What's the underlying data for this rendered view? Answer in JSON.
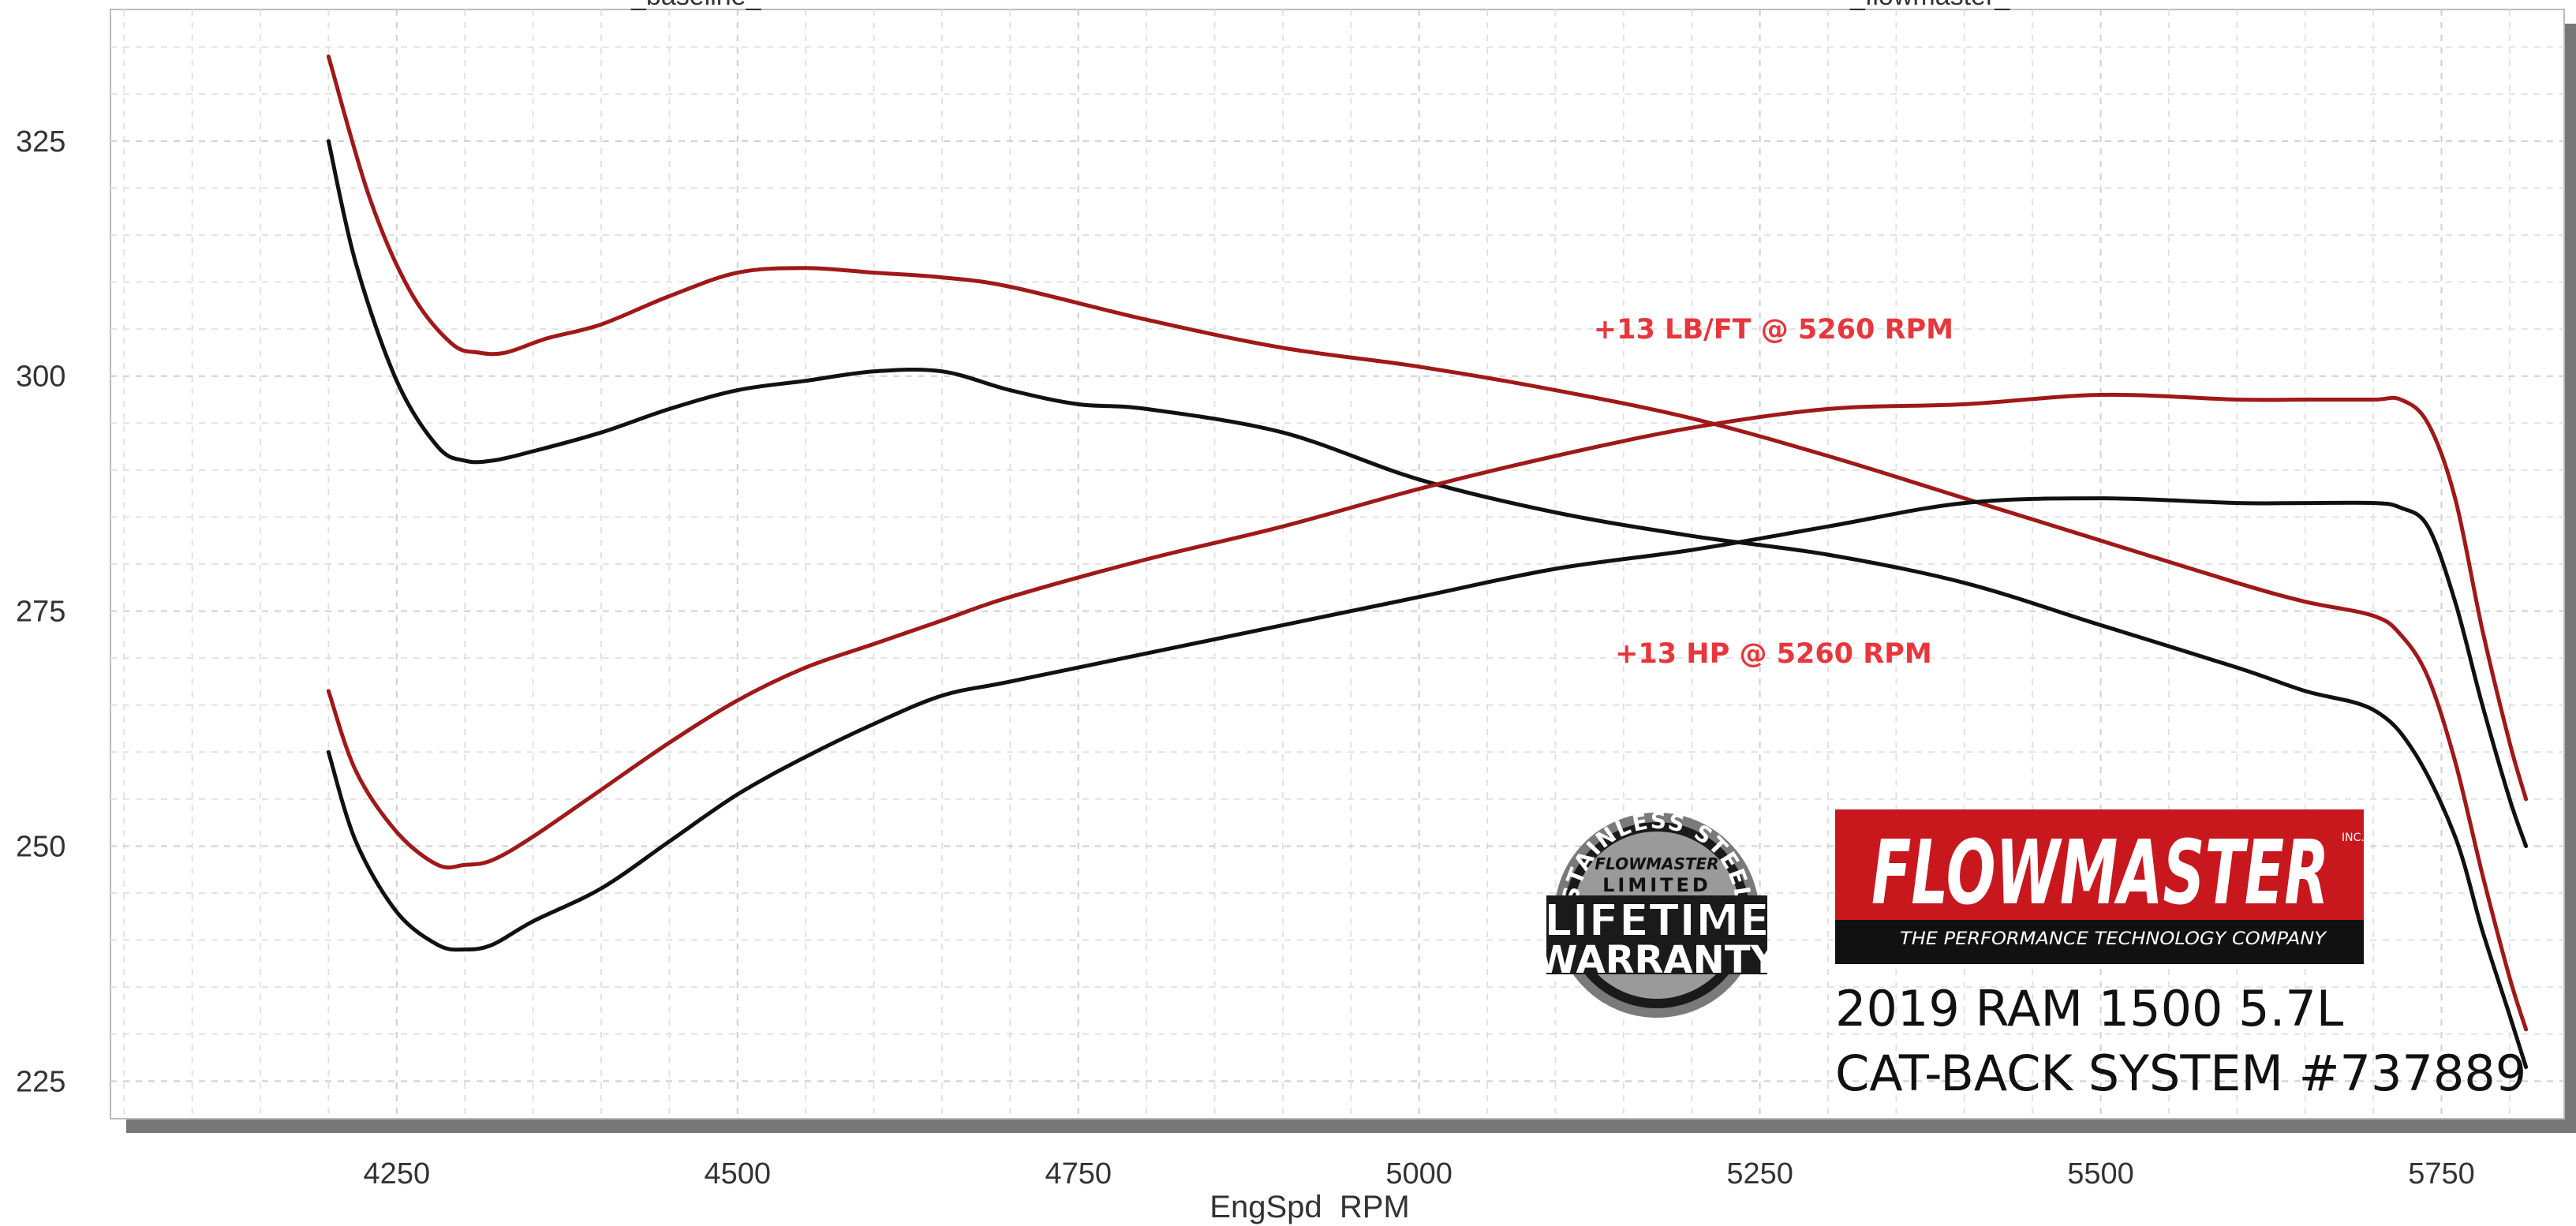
{
  "chart_data": {
    "type": "line",
    "xlabel": "EngSpd  RPM",
    "ylabel": "",
    "xlim": [
      4040,
      5840
    ],
    "ylim": [
      221,
      339
    ],
    "x_ticks": [
      4250,
      4500,
      4750,
      5000,
      5250,
      5500,
      5750
    ],
    "y_ticks": [
      225,
      250,
      275,
      300,
      325
    ],
    "top_labels": [
      "_baseline_",
      "_flowmaster_"
    ],
    "grid": true,
    "series": [
      {
        "color": "#a01818",
        "x": [
          4200,
          4230,
          4260,
          4290,
          4310,
          4330,
          4360,
          4400,
          4450,
          4500,
          4550,
          4600,
          4650,
          4700,
          4800,
          4900,
          5000,
          5100,
          5200,
          5300,
          5400,
          5500,
          5600,
          5650,
          5700,
          5720,
          5740,
          5760,
          5780,
          5800,
          5812
        ],
        "y": [
          334,
          319,
          309,
          303.5,
          302.5,
          302.5,
          304,
          305.5,
          308.5,
          311,
          311.5,
          311,
          310.5,
          309.5,
          306,
          303,
          301,
          298.5,
          295.5,
          291.5,
          287,
          282.5,
          278,
          276,
          274.5,
          272.5,
          268,
          259,
          247,
          236,
          230.5
        ]
      },
      {
        "color": "#111111",
        "x": [
          4200,
          4220,
          4250,
          4280,
          4300,
          4320,
          4350,
          4400,
          4450,
          4500,
          4550,
          4600,
          4650,
          4700,
          4750,
          4800,
          4900,
          5000,
          5100,
          5200,
          5300,
          5400,
          5500,
          5600,
          5650,
          5700,
          5730,
          5760,
          5780,
          5800,
          5812
        ],
        "y": [
          325,
          312,
          299.5,
          292.5,
          291,
          291,
          292,
          294,
          296.5,
          298.5,
          299.5,
          300.5,
          300.5,
          298.5,
          297,
          296.5,
          294,
          289,
          285.5,
          283,
          281,
          278,
          273.5,
          269,
          266.5,
          264.5,
          260,
          251,
          241,
          232,
          226.5
        ]
      },
      {
        "color": "#a01818",
        "x": [
          4200,
          4220,
          4250,
          4280,
          4300,
          4320,
          4350,
          4400,
          4450,
          4500,
          4550,
          4600,
          4650,
          4700,
          4800,
          4900,
          5000,
          5100,
          5200,
          5300,
          5400,
          5500,
          5600,
          5650,
          5700,
          5720,
          5740,
          5760,
          5780,
          5800,
          5812
        ],
        "y": [
          266.5,
          258,
          251.5,
          248,
          248,
          248.5,
          251,
          256,
          261,
          265.5,
          269,
          271.5,
          274,
          276.5,
          280.5,
          284,
          288,
          291.5,
          294.5,
          296.5,
          297,
          298,
          297.5,
          297.5,
          297.5,
          297.5,
          295,
          287,
          273,
          261,
          255
        ]
      },
      {
        "color": "#111111",
        "x": [
          4200,
          4220,
          4250,
          4280,
          4300,
          4320,
          4350,
          4400,
          4450,
          4500,
          4550,
          4600,
          4650,
          4700,
          4800,
          4900,
          5000,
          5100,
          5200,
          5300,
          5400,
          5500,
          5600,
          5650,
          5700,
          5720,
          5740,
          5760,
          5780,
          5800,
          5812
        ],
        "y": [
          260,
          250.5,
          243,
          239.5,
          239,
          239.5,
          242,
          245.5,
          250.5,
          255.5,
          259.5,
          263,
          266,
          267.5,
          270.5,
          273.5,
          276.5,
          279.5,
          281.5,
          284,
          286.5,
          287,
          286.5,
          286.5,
          286.5,
          286,
          284,
          276,
          265,
          255,
          250
        ]
      }
    ],
    "annotations": [
      {
        "text": "+13 LB/FT @ 5260 RPM",
        "x": 5260,
        "y": 304
      },
      {
        "text": "+13 HP @ 5260 RPM",
        "x": 5260,
        "y": 269.5
      }
    ]
  },
  "badge": {
    "arc_text": "STAINLESS STEEL",
    "brand": "FLOWMASTER",
    "limited": "LIMITED",
    "line1": "LIFETIME",
    "line2": "WARRANTY"
  },
  "logo": {
    "name": "FLOWMASTER",
    "inc": "INC.",
    "tagline": "THE PERFORMANCE TECHNOLOGY COMPANY"
  },
  "caption": {
    "line1": "2019 RAM 1500 5.7L",
    "line2": "CAT-BACK SYSTEM #737889"
  }
}
